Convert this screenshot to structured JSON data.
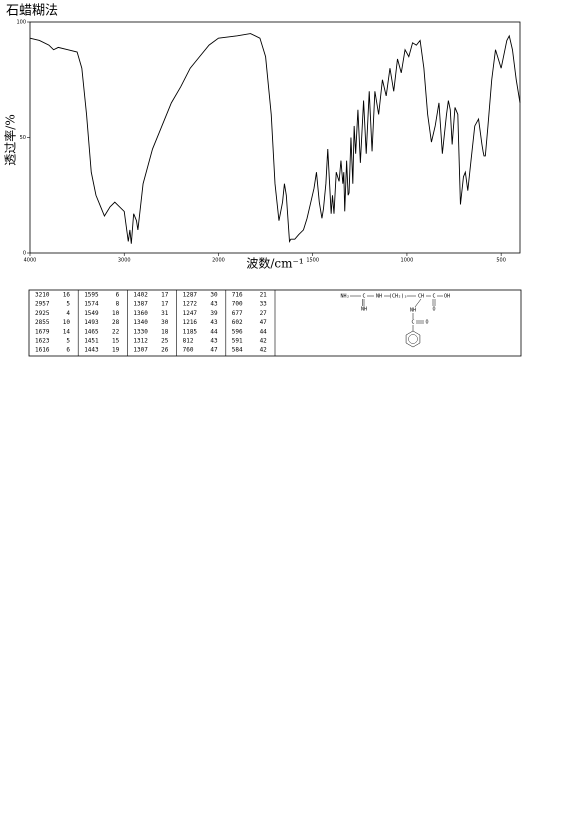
{
  "chart_data": {
    "type": "line",
    "title": "石蜡糊法",
    "x_label": "波数/cm⁻¹",
    "y_label": "透过率/%",
    "x": [
      4000,
      3900,
      3800,
      3750,
      3700,
      3600,
      3500,
      3450,
      3400,
      3350,
      3300,
      3250,
      3210,
      3150,
      3100,
      3050,
      3000,
      2957,
      2940,
      2925,
      2900,
      2870,
      2855,
      2800,
      2700,
      2600,
      2500,
      2400,
      2300,
      2200,
      2100,
      2000,
      1900,
      1830,
      1780,
      1750,
      1720,
      1700,
      1679,
      1660,
      1650,
      1640,
      1623,
      1616,
      1595,
      1574,
      1549,
      1530,
      1510,
      1493,
      1480,
      1465,
      1451,
      1443,
      1430,
      1420,
      1402,
      1395,
      1387,
      1375,
      1360,
      1350,
      1340,
      1335,
      1330,
      1320,
      1312,
      1307,
      1297,
      1287,
      1280,
      1272,
      1260,
      1247,
      1230,
      1216,
      1200,
      1185,
      1170,
      1150,
      1130,
      1110,
      1090,
      1070,
      1050,
      1030,
      1010,
      990,
      970,
      950,
      930,
      910,
      890,
      870,
      850,
      830,
      812,
      790,
      780,
      770,
      760,
      745,
      730,
      716,
      700,
      690,
      677,
      660,
      640,
      620,
      602,
      596,
      591,
      584,
      570,
      550,
      530,
      500,
      470,
      457,
      440,
      420,
      400
    ],
    "series": [
      {
        "color": "#000000",
        "values": [
          93,
          92,
          90,
          88,
          89,
          88,
          87,
          80,
          60,
          35,
          25,
          20,
          16,
          20,
          22,
          20,
          18,
          5,
          10,
          4,
          17,
          14,
          10,
          30,
          45,
          55,
          65,
          72,
          80,
          85,
          90,
          93,
          94,
          95,
          93,
          85,
          60,
          30,
          14,
          22,
          30,
          25,
          5,
          6,
          6,
          8,
          10,
          15,
          22,
          28,
          35,
          22,
          15,
          19,
          30,
          45,
          17,
          25,
          17,
          35,
          31,
          40,
          30,
          35,
          18,
          40,
          25,
          26,
          50,
          30,
          55,
          43,
          62,
          39,
          66,
          43,
          70,
          44,
          70,
          60,
          75,
          68,
          80,
          70,
          84,
          78,
          88,
          85,
          91,
          90,
          92,
          80,
          60,
          48,
          55,
          65,
          43,
          60,
          66,
          62,
          47,
          63,
          60,
          21,
          33,
          35,
          27,
          40,
          55,
          58,
          47,
          44,
          42,
          42,
          55,
          75,
          88,
          80,
          92,
          94,
          88,
          75,
          65
        ]
      }
    ],
    "xlim": [
      4000,
      400
    ],
    "ylim": [
      0,
      100
    ],
    "xticks": [
      4000,
      3000,
      2000,
      1500,
      1000,
      500
    ],
    "yticks": [
      0,
      50,
      100
    ]
  },
  "peak_table": {
    "groups": [
      [
        [
          3210,
          16
        ],
        [
          2957,
          5
        ],
        [
          2925,
          4
        ],
        [
          2855,
          10
        ],
        [
          1679,
          14
        ],
        [
          1623,
          5
        ],
        [
          1616,
          6
        ]
      ],
      [
        [
          1595,
          6
        ],
        [
          1574,
          8
        ],
        [
          1549,
          10
        ],
        [
          1493,
          28
        ],
        [
          1465,
          22
        ],
        [
          1451,
          15
        ],
        [
          1443,
          19
        ]
      ],
      [
        [
          1402,
          17
        ],
        [
          1387,
          17
        ],
        [
          1360,
          31
        ],
        [
          1340,
          30
        ],
        [
          1330,
          18
        ],
        [
          1312,
          25
        ],
        [
          1307,
          26
        ]
      ],
      [
        [
          1287,
          30
        ],
        [
          1272,
          43
        ],
        [
          1247,
          39
        ],
        [
          1216,
          43
        ],
        [
          1185,
          44
        ],
        [
          812,
          43
        ],
        [
          760,
          47
        ]
      ],
      [
        [
          716,
          21
        ],
        [
          700,
          33
        ],
        [
          677,
          27
        ],
        [
          602,
          47
        ],
        [
          596,
          44
        ],
        [
          591,
          42
        ],
        [
          584,
          42
        ]
      ]
    ]
  },
  "structure": {
    "labels": [
      "NH₂",
      "C",
      "NH",
      "(CH₂)₃",
      "CH",
      "C",
      "OH",
      "NH",
      "NH",
      "C",
      "O",
      "O"
    ]
  }
}
